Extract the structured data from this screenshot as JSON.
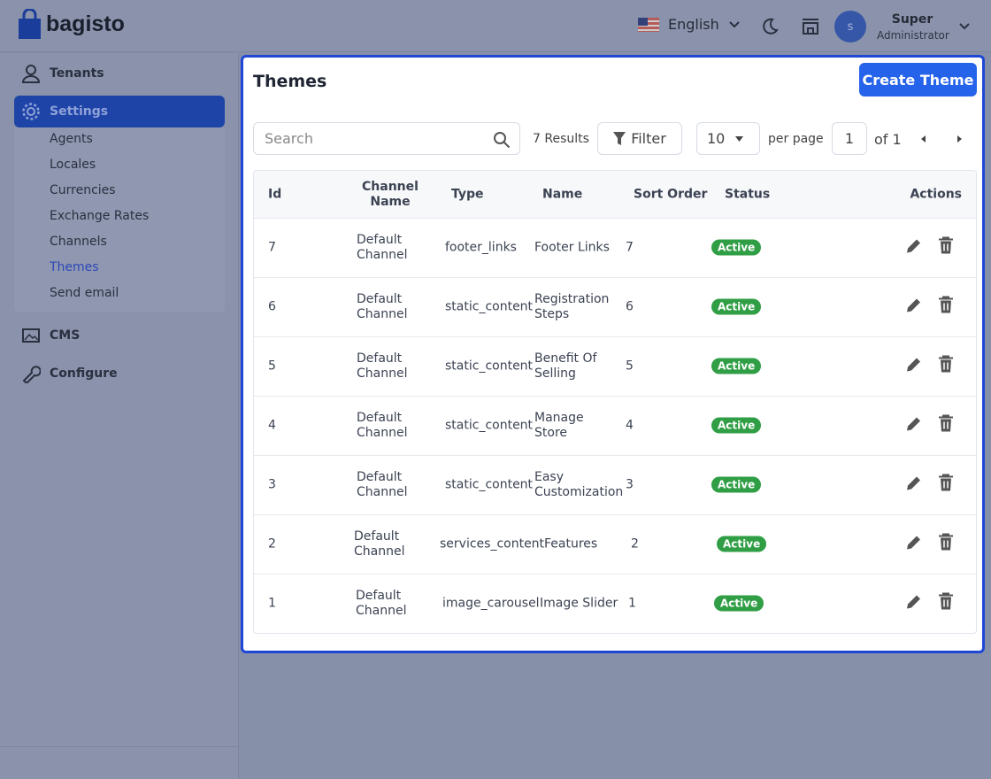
{
  "header": {
    "brand": "bagisto",
    "language": "English",
    "user_name": "Super",
    "user_role": "Administrator",
    "avatar": "s"
  },
  "sidebar": {
    "items": [
      {
        "label": "Tenants"
      },
      {
        "label": "Settings",
        "children": [
          "Agents",
          "Locales",
          "Currencies",
          "Exchange Rates",
          "Channels",
          "Themes",
          "Send email"
        ]
      },
      {
        "label": "CMS"
      },
      {
        "label": "Configure"
      }
    ]
  },
  "page": {
    "title": "Themes",
    "create_button": "Create Theme",
    "search_placeholder": "Search",
    "results": "7 Results",
    "filter": "Filter",
    "per_page_value": "10",
    "per_page_label": "per page",
    "page_number": "1",
    "page_total": "of 1"
  },
  "table": {
    "columns": [
      "Id",
      "Channel Name",
      "Type",
      "Name",
      "Sort Order",
      "Status",
      "Actions"
    ],
    "rows": [
      [
        7,
        "Default Channel",
        "footer_links",
        "Footer Links",
        7,
        "Active"
      ],
      [
        6,
        "Default Channel",
        "static_content",
        "Registration Steps",
        6,
        "Active"
      ],
      [
        5,
        "Default Channel",
        "static_content",
        "Benefit Of Selling",
        5,
        "Active"
      ],
      [
        4,
        "Default Channel",
        "static_content",
        "Manage Store",
        4,
        "Active"
      ],
      [
        3,
        "Default Channel",
        "static_content",
        "Easy Customization",
        3,
        "Active"
      ],
      [
        2,
        "Default Channel",
        "services_content",
        "Features",
        2,
        "Active"
      ],
      [
        1,
        "Default Channel",
        "image_carousel",
        "Image Slider",
        1,
        "Active"
      ]
    ]
  }
}
